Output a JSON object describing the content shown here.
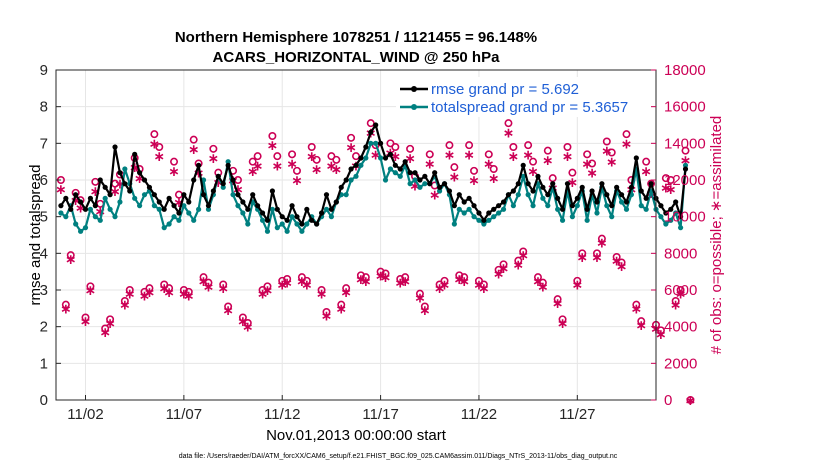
{
  "chart_data": {
    "type": "line",
    "title_line1": "Northern Hemisphere 1078251 / 1121455 = 96.148%",
    "title_line2": "ACARS_HORIZONTAL_WIND @ 250 hPa",
    "xlabel": "Nov.01,2013 00:00:00 start",
    "ylabel_left": "rmse and totalspread",
    "ylabel_right": "# of obs: o=possible; ∗=assimilated",
    "footer": "data file: /Users/raeder/DAI/ATM_forcXX/CAM6_setup/f.e21.FHIST_BGC.f09_025.CAM6assim.011/Diags_NTrS_2013-11/obs_diag_output.nc",
    "xlim": [
      0.5,
      31.0
    ],
    "ylim_left": [
      0,
      9
    ],
    "ylim_right": [
      0,
      18000
    ],
    "x_ticks": [
      {
        "value": 2,
        "label": "11/02"
      },
      {
        "value": 7,
        "label": "11/07"
      },
      {
        "value": 12,
        "label": "11/12"
      },
      {
        "value": 17,
        "label": "11/17"
      },
      {
        "value": 22,
        "label": "11/22"
      },
      {
        "value": 27,
        "label": "11/27"
      }
    ],
    "y_left_ticks": [
      "0",
      "1",
      "2",
      "3",
      "4",
      "5",
      "6",
      "7",
      "8",
      "9"
    ],
    "y_right_ticks": [
      "0",
      "2000",
      "4000",
      "6000",
      "8000",
      "10000",
      "12000",
      "14000",
      "16000",
      "18000"
    ],
    "series": [
      {
        "name": "rmse",
        "legend": "rmse grand pr = 5.692",
        "color": "#000000",
        "x_start": 0.75,
        "x_step": 0.25,
        "values": [
          5.3,
          5.5,
          5.2,
          5.6,
          5.4,
          5.2,
          5.5,
          5.3,
          6.0,
          5.8,
          5.6,
          6.9,
          6.2,
          5.9,
          5.7,
          6.7,
          6.2,
          6.0,
          5.8,
          5.6,
          5.4,
          5.2,
          5.5,
          5.3,
          5.1,
          5.6,
          5.4,
          6.0,
          6.4,
          5.6,
          5.3,
          5.7,
          6.1,
          5.9,
          6.4,
          6.0,
          5.6,
          5.4,
          5.2,
          5.6,
          5.3,
          5.1,
          4.9,
          5.7,
          5.2,
          5.0,
          4.9,
          5.3,
          5.0,
          4.8,
          5.2,
          4.9,
          4.8,
          5.1,
          5.6,
          5.2,
          5.4,
          5.8,
          6.0,
          6.3,
          6.4,
          6.6,
          6.9,
          7.3,
          7.5,
          7.0,
          6.6,
          6.7,
          6.4,
          6.3,
          6.5,
          6.2,
          6.2,
          6.0,
          6.1,
          5.9,
          6.2,
          5.8,
          5.9,
          5.7,
          5.3,
          5.6,
          5.4,
          5.5,
          5.3,
          5.1,
          4.9,
          5.1,
          5.2,
          5.3,
          5.4,
          5.6,
          5.7,
          5.9,
          6.4,
          5.9,
          5.7,
          6.1,
          5.8,
          5.6,
          5.9,
          5.5,
          5.2,
          5.9,
          5.3,
          5.5,
          5.8,
          5.2,
          5.7,
          5.4,
          5.9,
          5.6,
          5.3,
          5.8,
          5.6,
          5.4,
          5.8,
          6.6,
          5.7,
          5.5,
          5.9,
          5.5,
          5.3,
          5.1,
          5.2,
          5.4,
          5.0,
          6.3
        ]
      },
      {
        "name": "totalspread",
        "legend": "totalspread grand pr = 5.3657",
        "color": "#008080",
        "x_start": 0.75,
        "x_step": 0.25,
        "values": [
          5.1,
          5.0,
          5.3,
          4.8,
          4.6,
          4.7,
          5.2,
          5.0,
          4.9,
          5.5,
          5.2,
          5.0,
          5.4,
          6.3,
          5.9,
          5.5,
          5.3,
          5.6,
          5.7,
          5.3,
          5.2,
          4.7,
          4.8,
          5.0,
          4.9,
          5.3,
          5.1,
          4.9,
          5.2,
          6.0,
          5.2,
          5.6,
          6.1,
          5.8,
          6.5,
          5.6,
          5.3,
          5.1,
          4.8,
          5.4,
          5.2,
          4.9,
          4.6,
          5.2,
          4.7,
          4.8,
          4.6,
          5.0,
          4.8,
          4.6,
          4.8,
          5.0,
          4.8,
          5.0,
          5.2,
          5.0,
          5.4,
          5.6,
          5.6,
          6.0,
          6.1,
          6.4,
          6.6,
          7.0,
          7.0,
          6.6,
          6.0,
          6.3,
          6.2,
          6.1,
          6.4,
          5.9,
          6.0,
          5.8,
          5.9,
          5.9,
          6.1,
          5.7,
          5.9,
          5.6,
          4.8,
          5.2,
          5.1,
          5.2,
          5.0,
          4.9,
          4.8,
          4.9,
          5.0,
          5.1,
          5.2,
          5.6,
          5.3,
          5.6,
          6.1,
          5.6,
          5.3,
          5.9,
          5.5,
          5.3,
          5.8,
          5.2,
          4.9,
          5.7,
          5.0,
          5.3,
          5.7,
          4.9,
          5.6,
          5.1,
          5.8,
          5.3,
          5.0,
          5.7,
          5.4,
          5.2,
          5.6,
          6.3,
          5.3,
          5.2,
          5.7,
          5.2,
          5.0,
          4.8,
          4.9,
          5.1,
          4.7,
          6.4
        ]
      },
      {
        "name": "possible",
        "color": "#cc0055",
        "x_start": 0.75,
        "x_step": 0.25,
        "values": [
          12000,
          5200,
          7900,
          11300,
          10900,
          4500,
          6200,
          11900,
          10700,
          3900,
          4400,
          11800,
          12300,
          5400,
          6000,
          13200,
          12600,
          5900,
          6100,
          14500,
          13800,
          6300,
          6100,
          13000,
          11200,
          6000,
          5900,
          14200,
          12900,
          6700,
          6400,
          13700,
          12400,
          6300,
          5100,
          12500,
          12000,
          4500,
          4200,
          13000,
          13300,
          6000,
          6200,
          14400,
          13300,
          6500,
          6600,
          13400,
          12500,
          6700,
          6500,
          13800,
          13100,
          6000,
          4800,
          13300,
          13100,
          5200,
          6100,
          14300,
          13300,
          6800,
          6700,
          15100,
          13900,
          7000,
          6900,
          14000,
          13800,
          6600,
          6700,
          13700,
          12200,
          5800,
          5100,
          13400,
          11700,
          6300,
          6500,
          13900,
          12700,
          6800,
          6700,
          13900,
          12500,
          6500,
          6300,
          13400,
          12600,
          7100,
          7400,
          15100,
          13800,
          7600,
          8100,
          13900,
          13000,
          6700,
          6400,
          13600,
          12100,
          5500,
          4400,
          13800,
          12400,
          6500,
          8000,
          13400,
          12900,
          8000,
          8800,
          14100,
          13500,
          7800,
          7500,
          14500,
          12000,
          5200,
          4300,
          13000,
          11800,
          4100,
          3800,
          12100,
          12000,
          5400,
          6000,
          13600,
          0
        ]
      },
      {
        "name": "assimilated",
        "color": "#cc0055",
        "x_start": 0.75,
        "x_step": 0.25,
        "values": [
          11500,
          5000,
          7700,
          10900,
          10500,
          4300,
          6000,
          11400,
          10300,
          3700,
          4200,
          11400,
          11800,
          5200,
          5800,
          12700,
          12100,
          5700,
          5900,
          14000,
          13300,
          6100,
          5900,
          12500,
          10800,
          5800,
          5700,
          13700,
          12400,
          6500,
          6200,
          13200,
          11900,
          6100,
          4900,
          12000,
          11500,
          4300,
          4000,
          12500,
          12800,
          5800,
          6000,
          13900,
          12800,
          6300,
          6400,
          12900,
          12000,
          6500,
          6300,
          13300,
          12600,
          5800,
          4600,
          12800,
          12600,
          5000,
          5900,
          13800,
          12800,
          6600,
          6500,
          14600,
          13400,
          6800,
          6700,
          13500,
          13300,
          6400,
          6500,
          13200,
          11700,
          5600,
          4900,
          12900,
          11200,
          6100,
          6300,
          13400,
          12200,
          6600,
          6500,
          13400,
          12000,
          6300,
          6100,
          12900,
          12100,
          6900,
          7200,
          14600,
          13300,
          7400,
          7900,
          13400,
          12500,
          6500,
          6200,
          13100,
          11600,
          5300,
          4200,
          13300,
          11900,
          6300,
          7800,
          12900,
          12400,
          7800,
          8600,
          13600,
          13000,
          7600,
          7300,
          14000,
          11500,
          5000,
          4100,
          12500,
          11300,
          3900,
          3600,
          11600,
          11500,
          5200,
          5800,
          13100,
          0
        ]
      }
    ]
  }
}
